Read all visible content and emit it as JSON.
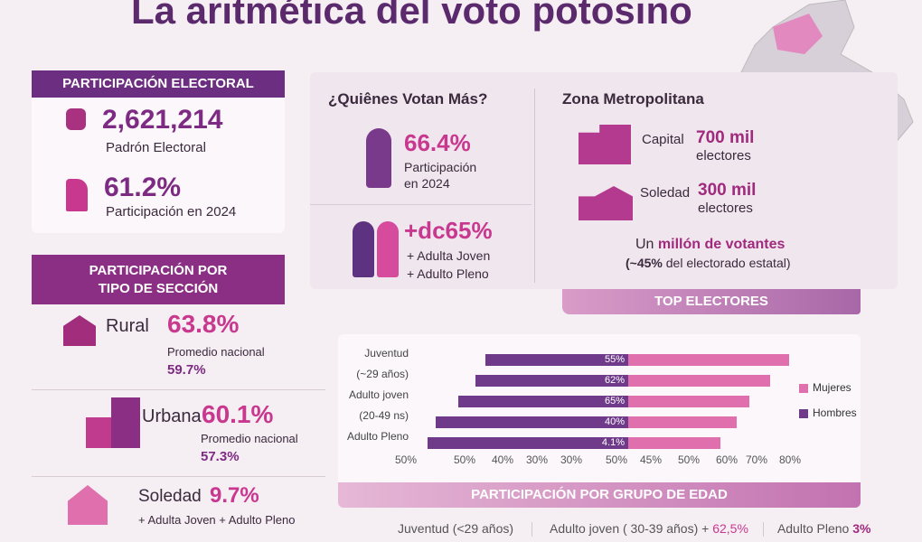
{
  "title": "La aritmética del voto potosino",
  "participacion": {
    "header": "PARTICIPACIÓN ELECTORAL",
    "padron_value": "2,621,214",
    "padron_label": "Padrón Electoral",
    "part_value": "61.2%",
    "part_label": "Participación en 2024"
  },
  "quienes": {
    "title": "¿Quiênes Votan Más?",
    "value1": "66.4%",
    "label1a": "Participación",
    "label1b": "en 2024",
    "value2": "+dc65%",
    "label2a": "+ Adulta Joven",
    "label2b": "+ Adulto Pleno"
  },
  "zona": {
    "title": "Zona Metropolitana",
    "capital_label": "Capital",
    "capital_value": "700 mil",
    "capital_unit": "electores",
    "soledad_label": "Soledad",
    "soledad_value": "300 mil",
    "soledad_unit": "electores",
    "total_a": "Un",
    "total_b": "millón de votantes",
    "total_c": "(~45%",
    "total_d": "del electorado estatal)"
  },
  "seccion": {
    "header1": "PARTICIPACIÓN POR",
    "header2": "TIPO DE SECCIÓN",
    "rural_label": "Rural",
    "rural_value": "63.8%",
    "rural_nat": "Promedio nacional",
    "rural_nat_value": "59.7%",
    "urbana_label": "Urbana",
    "urbana_value": "60.1%",
    "urbana_nat": "Promedio nacional",
    "urbana_nat_value": "57.3%",
    "soledad_label": "Soledad",
    "soledad_value": "9.7%",
    "soledad_sub": "+ Adulta Joven + Adulto Pleno"
  },
  "top_electores": "TOP ELECTORES",
  "chart_data": {
    "type": "bar",
    "title": "PARTICIPACIÓN POR GRUPO DE EDAD",
    "row_labels": [
      "Juventud",
      "(~29 años)",
      "Adulto joven",
      "(20-49 ns)",
      "Adulto Pleno"
    ],
    "bar_labels": [
      "55%",
      "62%",
      "65%",
      "40%",
      "4.1%"
    ],
    "series": [
      {
        "name": "Hombres",
        "color": "#6f3a8a",
        "values": [
          24.7,
          26.4,
          29.4,
          33.3,
          34.7
        ]
      },
      {
        "name": "Mujeres",
        "color": "#e070ad",
        "values": [
          27.8,
          24.5,
          21,
          18.8,
          16
        ]
      }
    ],
    "x_ticks": [
      "50%",
      "50%",
      "40%",
      "30%",
      "30%",
      "50%",
      "45%",
      "50%",
      "60%",
      "70%",
      "80%"
    ],
    "legend": [
      "Mujeres",
      "Hombres"
    ],
    "legend_position": "right"
  },
  "footer": {
    "a": "Juventud (<29 años)",
    "b": "Adulto joven ( 30-39 años) +",
    "b_val": "62,5%",
    "c": "Adulto Pleno",
    "c_val": "3%"
  }
}
